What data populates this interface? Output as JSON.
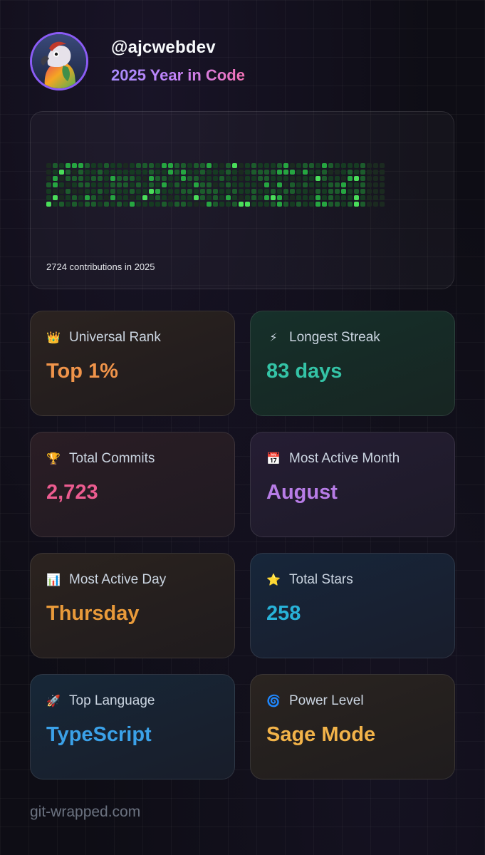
{
  "profile": {
    "handle": "@ajcwebdev",
    "subtitle": "2025 Year in Code"
  },
  "contributions": {
    "caption": "2724 contributions in 2025",
    "weeks": 53,
    "colors": [
      "#1b2a20",
      "#163b22",
      "#1c5c2c",
      "#26a641",
      "#4ade5a"
    ]
  },
  "stats": [
    {
      "emoji": "👑",
      "label": "Universal Rank",
      "value": "Top 1%",
      "color": "#f0944a"
    },
    {
      "emoji": "⚡",
      "label": "Longest Streak",
      "value": "83 days",
      "color": "#34c3a6"
    },
    {
      "emoji": "🏆",
      "label": "Total Commits",
      "value": "2,723",
      "color": "#ec5c90"
    },
    {
      "emoji": "📅",
      "label": "Most Active Month",
      "value": "August",
      "color": "#b77ce6"
    },
    {
      "emoji": "📊",
      "label": "Most Active Day",
      "value": "Thursday",
      "color": "#e99a3a"
    },
    {
      "emoji": "⭐",
      "label": "Total Stars",
      "value": "258",
      "color": "#28b2d8"
    },
    {
      "emoji": "🚀",
      "label": "Top Language",
      "value": "TypeScript",
      "color": "#3ba1e8"
    },
    {
      "emoji": "🌀",
      "label": "Power Level",
      "value": "Sage Mode",
      "color": "#f2b349"
    }
  ],
  "footer": "git-wrapped.com"
}
